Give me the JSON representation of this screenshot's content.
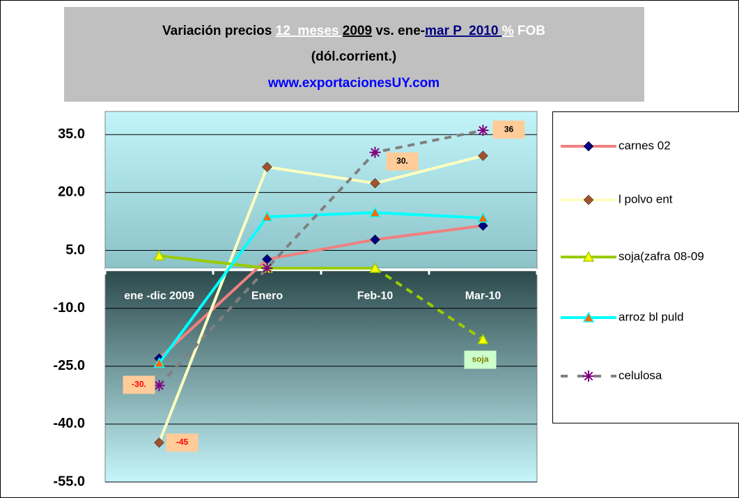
{
  "chart_data": {
    "type": "line",
    "title": {
      "parts": [
        {
          "text": "Variación precios ",
          "color": "#000000",
          "underline": false
        },
        {
          "text": "12  meses ",
          "color": "#ffffff",
          "underline": true
        },
        {
          "text": "2009",
          "color": "#000000",
          "underline": true
        },
        {
          "text": " vs. ene-",
          "color": "#000000",
          "underline": false
        },
        {
          "text": "mar P  2010 ",
          "color": "#000080",
          "underline": true
        },
        {
          "text": "%",
          "color": "#ffffff",
          "underline": true
        },
        {
          "text": " FOB",
          "color": "#ffffff",
          "underline": false
        }
      ]
    },
    "subtitle": "(dól.corrient.)",
    "source": "www.exportacionesUY.com",
    "categories": [
      "ene -dic 2009",
      "Enero",
      "Feb-10",
      "Mar-10"
    ],
    "series": [
      {
        "name": "carnes 02",
        "color": "#f08080",
        "marker": "diamond",
        "marker_color": "#000080",
        "values": [
          -23.0,
          2.7,
          7.8,
          11.4
        ]
      },
      {
        "name": "l polvo ent",
        "color": "#ffffc0",
        "marker": "diamond",
        "marker_color": "#a0522d",
        "values": [
          -44.8,
          26.6,
          22.4,
          29.5
        ],
        "value_labels": [
          "-45",
          null,
          null,
          null
        ]
      },
      {
        "name": "soja(zafra 08-09",
        "color": "#99cc00",
        "marker": "triangle",
        "marker_color": "#ffff00",
        "dash_last": true,
        "values": [
          3.6,
          0.4,
          0.4,
          -18.1
        ],
        "value_labels": [
          null,
          null,
          null,
          "soja"
        ]
      },
      {
        "name": "arroz bl puld",
        "color": "#00ffff",
        "marker": "triangle",
        "marker_color": "#ff6600",
        "values": [
          -24.2,
          13.7,
          14.8,
          13.4
        ]
      },
      {
        "name": "celulosa",
        "color": "#808080",
        "marker": "star",
        "marker_color": "#800080",
        "dashed": true,
        "values": [
          -30.0,
          0.4,
          30.4,
          36.1
        ],
        "value_labels": [
          "-30.",
          null,
          "30.",
          "36"
        ]
      }
    ],
    "ylim": [
      -55,
      41
    ],
    "yticks": [
      {
        "value": 35,
        "label": "35.0"
      },
      {
        "value": 20,
        "label": "20.0"
      },
      {
        "value": 5,
        "label": "5.0"
      },
      {
        "value": -10,
        "label": "-10.0"
      },
      {
        "value": -25,
        "label": "-25.0"
      },
      {
        "value": -40,
        "label": "-40.0"
      },
      {
        "value": -55,
        "label": "-55.0"
      }
    ],
    "grid": true,
    "legend": "right"
  }
}
